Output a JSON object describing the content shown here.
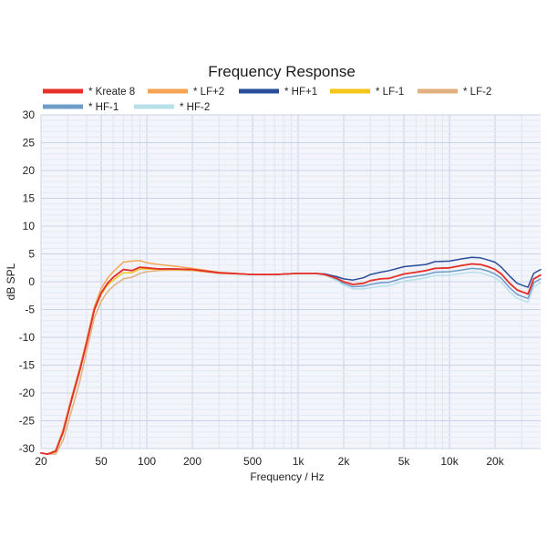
{
  "chart_data": {
    "type": "line",
    "title": "Frequency Response",
    "xlabel": "Frequency / Hz",
    "ylabel": "dB SPL",
    "x_scale": "log",
    "xlim": [
      20,
      40000
    ],
    "ylim": [
      -30,
      30
    ],
    "grid": true,
    "legend_position": "top",
    "x_ticks": [
      {
        "value": 20,
        "label": "20"
      },
      {
        "value": 50,
        "label": "50"
      },
      {
        "value": 100,
        "label": "100"
      },
      {
        "value": 200,
        "label": "200"
      },
      {
        "value": 500,
        "label": "500"
      },
      {
        "value": 1000,
        "label": "1k"
      },
      {
        "value": 2000,
        "label": "2k"
      },
      {
        "value": 5000,
        "label": "5k"
      },
      {
        "value": 10000,
        "label": "10k"
      },
      {
        "value": 20000,
        "label": "20k"
      }
    ],
    "y_ticks": [
      30,
      25,
      20,
      15,
      10,
      5,
      0,
      -5,
      -10,
      -15,
      -20,
      -25,
      -30
    ],
    "series": [
      {
        "name": "* Kreate 8",
        "color": "#e8302a",
        "x": [
          20,
          22,
          25,
          28,
          32,
          36,
          40,
          45,
          50,
          55,
          60,
          70,
          80,
          90,
          100,
          120,
          150,
          200,
          300,
          500,
          700,
          1000,
          1300,
          1500,
          1800,
          2000,
          2300,
          2700,
          3000,
          3500,
          4000,
          5000,
          6000,
          7000,
          8000,
          10000,
          12000,
          14000,
          16000,
          18000,
          20000,
          22000,
          25000,
          28000,
          30000,
          33000,
          36000,
          40000
        ],
        "y": [
          -30.8,
          -31,
          -30.5,
          -27,
          -21,
          -16,
          -11,
          -5,
          -2,
          -0.3,
          0.8,
          2.2,
          2,
          2.6,
          2.5,
          2.3,
          2.3,
          2.2,
          1.6,
          1.3,
          1.3,
          1.5,
          1.5,
          1.3,
          0.6,
          0,
          -0.5,
          -0.3,
          0.2,
          0.5,
          0.6,
          1.4,
          1.7,
          2,
          2.4,
          2.5,
          2.9,
          3.2,
          3.1,
          2.7,
          2.2,
          1.4,
          -0.3,
          -1.5,
          -1.8,
          -2.2,
          0.5,
          1.2
        ]
      },
      {
        "name": "* LF+2",
        "color": "#f5a555",
        "x": [
          20,
          22,
          25,
          28,
          32,
          36,
          40,
          45,
          50,
          55,
          60,
          70,
          80,
          90,
          100,
          120,
          150,
          200,
          300,
          500,
          700,
          1000,
          1300,
          1500,
          1800,
          2000,
          2300,
          2700,
          3000,
          3500,
          4000,
          5000,
          6000,
          7000,
          8000,
          10000,
          12000,
          14000,
          16000,
          18000,
          20000,
          22000,
          25000,
          28000,
          30000,
          33000,
          36000,
          40000
        ],
        "y": [
          -30.8,
          -31,
          -30.3,
          -26.5,
          -20.5,
          -15.5,
          -10.5,
          -4.5,
          -1.2,
          0.6,
          1.8,
          3.5,
          3.7,
          3.8,
          3.4,
          3.1,
          2.8,
          2.4,
          1.7,
          1.3,
          1.3,
          1.5,
          1.5,
          1.3,
          0.6,
          0,
          -0.5,
          -0.3,
          0.2,
          0.5,
          0.6,
          1.4,
          1.7,
          2,
          2.4,
          2.5,
          2.9,
          3.2,
          3.1,
          2.7,
          2.2,
          1.4,
          -0.3,
          -1.5,
          -1.8,
          -2.2,
          0.5,
          1.2
        ]
      },
      {
        "name": "* HF+1",
        "color": "#2a4c9a",
        "x": [
          20,
          22,
          25,
          28,
          32,
          36,
          40,
          45,
          50,
          55,
          60,
          70,
          80,
          90,
          100,
          120,
          150,
          200,
          300,
          500,
          700,
          1000,
          1300,
          1500,
          1800,
          2000,
          2300,
          2700,
          3000,
          3500,
          4000,
          5000,
          6000,
          7000,
          8000,
          10000,
          12000,
          14000,
          16000,
          18000,
          20000,
          22000,
          25000,
          28000,
          30000,
          33000,
          36000,
          40000
        ],
        "y": [
          -30.8,
          -31,
          -30.5,
          -27,
          -21,
          -16,
          -11,
          -5,
          -2,
          -0.3,
          0.8,
          2.2,
          2,
          2.6,
          2.5,
          2.3,
          2.3,
          2.2,
          1.6,
          1.3,
          1.3,
          1.5,
          1.5,
          1.4,
          0.9,
          0.5,
          0.3,
          0.7,
          1.3,
          1.7,
          2,
          2.7,
          2.9,
          3.1,
          3.6,
          3.7,
          4.1,
          4.4,
          4.3,
          3.9,
          3.5,
          2.6,
          1,
          -0.3,
          -0.6,
          -1,
          1.5,
          2.2
        ]
      },
      {
        "name": "* LF-1",
        "color": "#f5c518",
        "x": [
          20,
          22,
          25,
          28,
          32,
          36,
          40,
          45,
          50,
          55,
          60,
          70,
          80,
          90,
          100,
          120,
          150,
          200,
          300,
          500,
          700,
          1000
        ],
        "y": [
          -30.8,
          -31,
          -30.6,
          -27.2,
          -21.2,
          -16.2,
          -11.2,
          -5.2,
          -2.2,
          -0.6,
          0.3,
          1.6,
          1.6,
          2.3,
          2.3,
          2.2,
          2.2,
          2.1,
          1.6,
          1.3,
          1.3,
          1.5
        ]
      },
      {
        "name": "* LF-2",
        "color": "#e0b080",
        "x": [
          20,
          22,
          25,
          28,
          32,
          36,
          40,
          45,
          50,
          55,
          60,
          70,
          80,
          90,
          100,
          120,
          150,
          200,
          300,
          500,
          700,
          1000
        ],
        "y": [
          -30.8,
          -31,
          -31,
          -28.5,
          -23,
          -18,
          -12.5,
          -6.5,
          -3.5,
          -1.8,
          -0.8,
          0.5,
          0.8,
          1.5,
          1.8,
          2,
          2.1,
          2,
          1.5,
          1.3,
          1.3,
          1.5
        ]
      },
      {
        "name": "* HF-1",
        "color": "#6f9cc8",
        "x": [
          1000,
          1300,
          1500,
          1800,
          2000,
          2300,
          2700,
          3000,
          3500,
          4000,
          5000,
          6000,
          7000,
          8000,
          10000,
          12000,
          14000,
          16000,
          18000,
          20000,
          22000,
          25000,
          28000,
          30000,
          33000,
          36000,
          40000
        ],
        "y": [
          1.5,
          1.5,
          1.3,
          0.4,
          -0.3,
          -0.9,
          -0.8,
          -0.5,
          -0.2,
          -0.1,
          0.7,
          1,
          1.3,
          1.7,
          1.8,
          2.1,
          2.4,
          2.3,
          1.9,
          1.4,
          0.6,
          -1.1,
          -2.3,
          -2.6,
          -3,
          -0.2,
          0.5
        ]
      },
      {
        "name": "* HF-2",
        "color": "#b8e0ea",
        "x": [
          1000,
          1300,
          1500,
          1800,
          2000,
          2300,
          2700,
          3000,
          3500,
          4000,
          5000,
          6000,
          7000,
          8000,
          10000,
          12000,
          14000,
          16000,
          18000,
          20000,
          22000,
          25000,
          28000,
          30000,
          33000,
          36000,
          40000
        ],
        "y": [
          1.5,
          1.5,
          1.2,
          0.2,
          -0.6,
          -1.3,
          -1.3,
          -1.1,
          -0.8,
          -0.7,
          0.1,
          0.4,
          0.7,
          1.1,
          1.2,
          1.5,
          1.7,
          1.6,
          1.2,
          0.7,
          -0.1,
          -1.8,
          -3,
          -3.3,
          -3.7,
          -0.9,
          -0.2
        ]
      }
    ],
    "draw_order": [
      4,
      3,
      5,
      6,
      1,
      2,
      0
    ]
  }
}
